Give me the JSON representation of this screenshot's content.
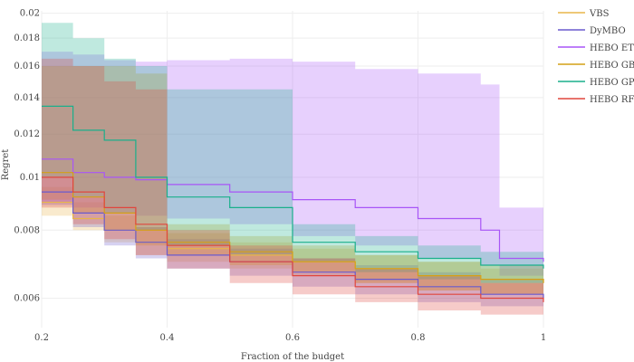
{
  "chart_data": {
    "type": "line",
    "xlabel": "Fraction of the budget",
    "ylabel": "Regret",
    "xlim": [
      0.2,
      1.0
    ],
    "ylim": [
      0.0053,
      0.0202
    ],
    "y_scale": "log",
    "grid": true,
    "legend_position": "top-right",
    "xticks": [
      0.2,
      0.4,
      0.6,
      0.8,
      1.0
    ],
    "xtick_labels": [
      "0.2",
      "0.4",
      "0.6",
      "0.8",
      "1"
    ],
    "yticks": [
      0.006,
      0.008,
      0.01,
      0.012,
      0.014,
      0.016,
      0.018,
      0.02
    ],
    "ytick_labels": [
      "0.006",
      "0.008",
      "0.01",
      "0.012",
      "0.014",
      "0.016",
      "0.018",
      "0.02"
    ],
    "series": [
      {
        "name": "VBS",
        "color": "#e8b54a",
        "x": [
          0.2,
          0.25,
          0.3,
          0.35,
          0.4,
          0.5,
          0.6,
          0.7,
          0.8,
          0.9,
          1.0
        ],
        "y": [
          0.009,
          0.0084,
          0.008,
          0.0076,
          0.0074,
          0.0072,
          0.007,
          0.0068,
          0.0066,
          0.0065,
          0.0064
        ],
        "upper": [
          0.0096,
          0.009,
          0.0085,
          0.0081,
          0.0079,
          0.0076,
          0.0074,
          0.0072,
          0.007,
          0.0068,
          0.0067
        ],
        "lower": [
          0.0085,
          0.008,
          0.0076,
          0.0072,
          0.007,
          0.0068,
          0.0066,
          0.0064,
          0.0062,
          0.0061,
          0.006
        ]
      },
      {
        "name": "DyMBO",
        "color": "#6a5acd",
        "x": [
          0.2,
          0.25,
          0.3,
          0.35,
          0.4,
          0.5,
          0.6,
          0.7,
          0.8,
          0.9,
          1.0
        ],
        "y": [
          0.0094,
          0.0086,
          0.008,
          0.0076,
          0.0072,
          0.007,
          0.0067,
          0.0065,
          0.0063,
          0.0061,
          0.006
        ],
        "upper": [
          0.01,
          0.0092,
          0.0086,
          0.0081,
          0.0077,
          0.0074,
          0.0071,
          0.0069,
          0.0067,
          0.0065,
          0.0064
        ],
        "lower": [
          0.0089,
          0.0081,
          0.0075,
          0.0071,
          0.0068,
          0.0066,
          0.0063,
          0.0061,
          0.0059,
          0.0058,
          0.0057
        ]
      },
      {
        "name": "HEBO ET",
        "color": "#a855f7",
        "x": [
          0.2,
          0.25,
          0.3,
          0.35,
          0.4,
          0.5,
          0.6,
          0.7,
          0.8,
          0.9,
          0.93,
          1.0
        ],
        "y": [
          0.0108,
          0.0102,
          0.01,
          0.0099,
          0.0097,
          0.0094,
          0.0091,
          0.0088,
          0.0084,
          0.008,
          0.0071,
          0.007
        ],
        "upper": [
          0.017,
          0.0168,
          0.0164,
          0.0163,
          0.0164,
          0.0165,
          0.0163,
          0.0158,
          0.0155,
          0.0148,
          0.0088,
          0.0088
        ],
        "lower": [
          0.009,
          0.0088,
          0.0086,
          0.0085,
          0.0084,
          0.0082,
          0.0078,
          0.0075,
          0.0071,
          0.0069,
          0.0066,
          0.0066
        ]
      },
      {
        "name": "HEBO GB",
        "color": "#d4a017",
        "x": [
          0.2,
          0.25,
          0.3,
          0.35,
          0.4,
          0.5,
          0.6,
          0.7,
          0.8,
          0.9,
          1.0
        ],
        "y": [
          0.0102,
          0.0092,
          0.0086,
          0.008,
          0.0076,
          0.0073,
          0.007,
          0.0068,
          0.0066,
          0.0065,
          0.0064
        ],
        "upper": [
          0.016,
          0.016,
          0.016,
          0.0155,
          0.0082,
          0.0078,
          0.0075,
          0.0072,
          0.007,
          0.0069,
          0.0068
        ],
        "lower": [
          0.0091,
          0.0086,
          0.008,
          0.0075,
          0.0072,
          0.0069,
          0.0067,
          0.0064,
          0.0062,
          0.0061,
          0.006
        ]
      },
      {
        "name": "HEBO GP",
        "color": "#1aaf8b",
        "x": [
          0.2,
          0.25,
          0.3,
          0.35,
          0.4,
          0.5,
          0.6,
          0.7,
          0.8,
          0.9,
          1.0
        ],
        "y": [
          0.0135,
          0.0122,
          0.0117,
          0.01,
          0.0092,
          0.0088,
          0.0076,
          0.0073,
          0.0071,
          0.0069,
          0.0068
        ],
        "upper": [
          0.0192,
          0.018,
          0.0165,
          0.016,
          0.0145,
          0.0145,
          0.0082,
          0.0078,
          0.0075,
          0.0073,
          0.0072
        ],
        "lower": [
          0.01,
          0.0092,
          0.0086,
          0.008,
          0.0075,
          0.0072,
          0.007,
          0.0067,
          0.0065,
          0.0064,
          0.0063
        ]
      },
      {
        "name": "HEBO RF",
        "color": "#e0463d",
        "x": [
          0.2,
          0.25,
          0.3,
          0.35,
          0.4,
          0.5,
          0.6,
          0.7,
          0.8,
          0.9,
          1.0
        ],
        "y": [
          0.01,
          0.0094,
          0.0088,
          0.0082,
          0.0075,
          0.007,
          0.0066,
          0.0063,
          0.0061,
          0.006,
          0.0059
        ],
        "upper": [
          0.0165,
          0.016,
          0.015,
          0.0145,
          0.008,
          0.0075,
          0.0071,
          0.0068,
          0.0066,
          0.0064,
          0.0063
        ],
        "lower": [
          0.0088,
          0.0082,
          0.0077,
          0.0072,
          0.0068,
          0.0064,
          0.0061,
          0.0059,
          0.0057,
          0.0056,
          0.0055
        ]
      }
    ]
  }
}
